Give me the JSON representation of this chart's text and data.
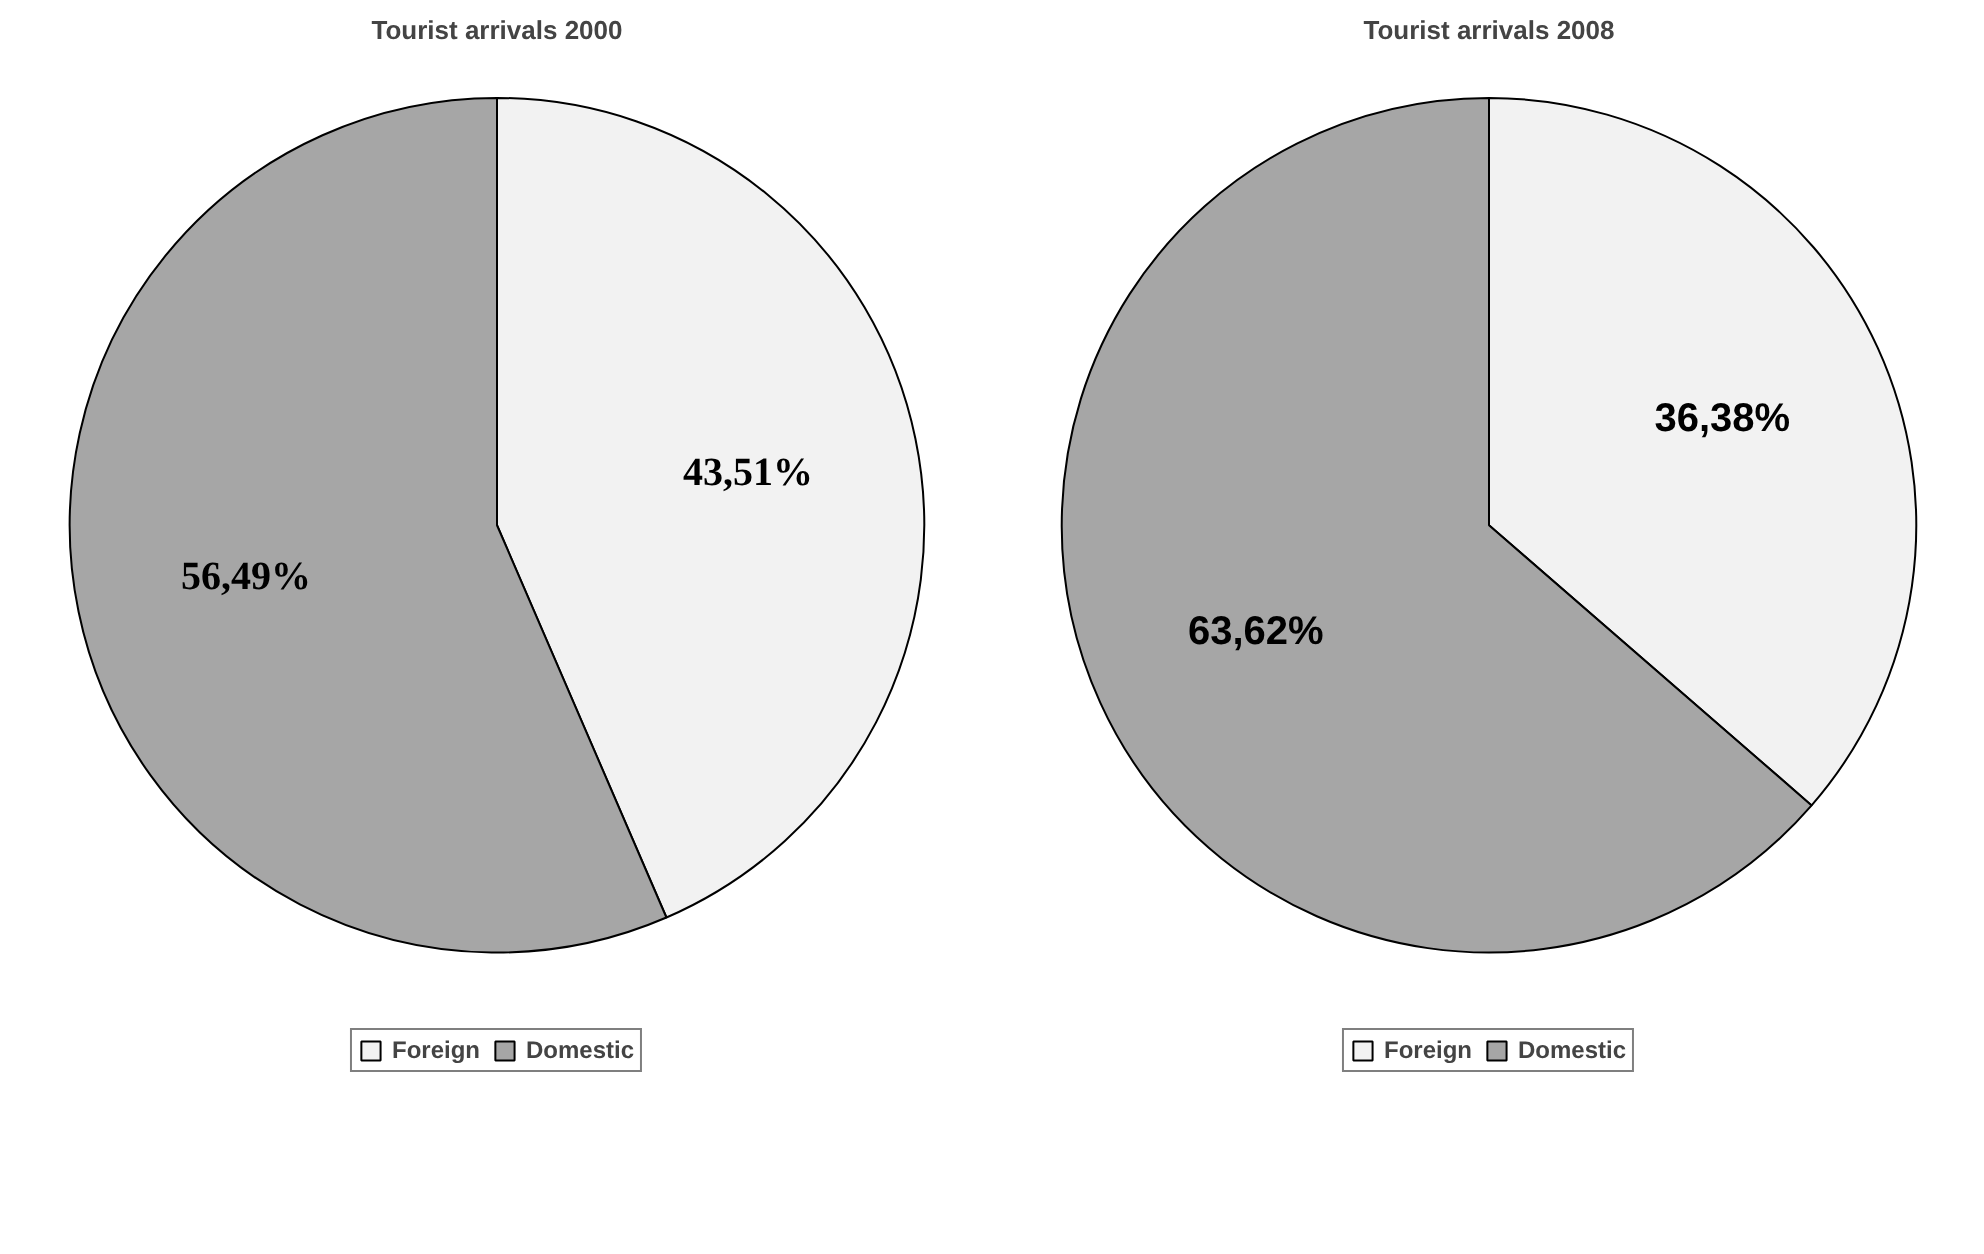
{
  "chart_data": [
    {
      "type": "pie",
      "title": "Tourist arrivals 2000",
      "categories": [
        "Foreign",
        "Domestic"
      ],
      "values": [
        43.51,
        56.49
      ],
      "colors": [
        "#f2f2f2",
        "#a6a6a6"
      ],
      "value_labels": [
        "43,51%",
        "56,49%"
      ],
      "legend": "bottom"
    },
    {
      "type": "pie",
      "title": "Tourist arrivals 2008",
      "categories": [
        "Foreign",
        "Domestic"
      ],
      "values": [
        36.38,
        63.62
      ],
      "colors": [
        "#f2f2f2",
        "#a6a6a6"
      ],
      "value_labels": [
        "36,38%",
        "63,62%"
      ],
      "legend": "bottom"
    }
  ]
}
